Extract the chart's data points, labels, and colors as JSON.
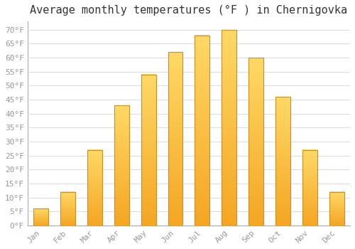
{
  "title": "Average monthly temperatures (°F ) in Chernigovka",
  "months": [
    "Jan",
    "Feb",
    "Mar",
    "Apr",
    "May",
    "Jun",
    "Jul",
    "Aug",
    "Sep",
    "Oct",
    "Nov",
    "Dec"
  ],
  "values": [
    6,
    12,
    27,
    43,
    54,
    62,
    68,
    70,
    60,
    46,
    27,
    12
  ],
  "bar_color_bottom": "#F5A623",
  "bar_color_top": "#FFD966",
  "bar_edge_color": "#C8922A",
  "background_color": "#FFFFFF",
  "grid_color": "#DDDDDD",
  "ytick_labels": [
    "0°F",
    "5°F",
    "10°F",
    "15°F",
    "20°F",
    "25°F",
    "30°F",
    "35°F",
    "40°F",
    "45°F",
    "50°F",
    "55°F",
    "60°F",
    "65°F",
    "70°F"
  ],
  "ytick_values": [
    0,
    5,
    10,
    15,
    20,
    25,
    30,
    35,
    40,
    45,
    50,
    55,
    60,
    65,
    70
  ],
  "ylim": [
    0,
    73
  ],
  "title_fontsize": 11,
  "tick_fontsize": 8,
  "tick_color": "#999999",
  "font_family": "monospace",
  "bar_width": 0.55
}
